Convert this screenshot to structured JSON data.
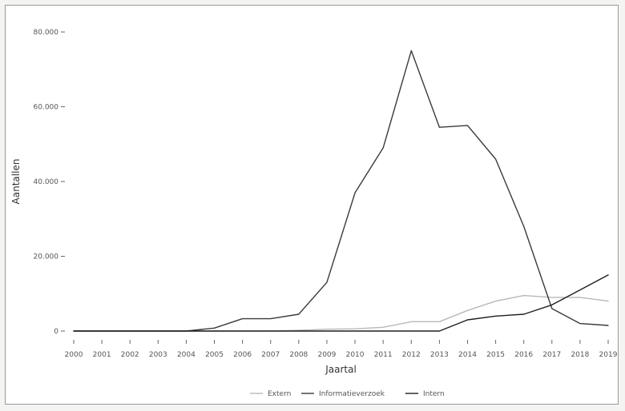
{
  "chart_data": {
    "type": "line",
    "title": "",
    "xlabel": "Jaartal",
    "ylabel": "Aantallen",
    "x": [
      2000,
      2001,
      2002,
      2003,
      2004,
      2005,
      2006,
      2007,
      2008,
      2009,
      2010,
      2011,
      2012,
      2013,
      2014,
      2015,
      2016,
      2017,
      2018,
      2019
    ],
    "x_tick_labels": [
      "2000",
      "2001",
      "2002",
      "2003",
      "2004",
      "2005",
      "2006",
      "2007",
      "2008",
      "2009",
      "2010",
      "2011",
      "2012",
      "2013",
      "2014",
      "2015",
      "2016",
      "2017",
      "2018",
      "2019"
    ],
    "ylim": [
      0,
      80000
    ],
    "y_ticks": [
      0,
      20000,
      40000,
      60000,
      80000
    ],
    "y_tick_labels": [
      "0",
      "20.000",
      "40.000",
      "60.000",
      "80.000"
    ],
    "grid": false,
    "legend_position": "bottom",
    "series": [
      {
        "name": "Extern",
        "color": "#b8b8b8",
        "values": [
          0,
          0,
          0,
          0,
          0,
          0,
          0,
          0,
          200,
          500,
          600,
          1000,
          2500,
          2500,
          5500,
          8000,
          9500,
          9000,
          9000,
          8000
        ]
      },
      {
        "name": "Informatieverzoek",
        "color": "#3a3a3a",
        "values": [
          0,
          0,
          0,
          0,
          0,
          800,
          3300,
          3300,
          4500,
          13000,
          37000,
          49000,
          75000,
          54500,
          55000,
          46000,
          28000,
          6000,
          2000,
          1500
        ]
      },
      {
        "name": "Intern",
        "color": "#1e1e1e",
        "values": [
          0,
          0,
          0,
          0,
          0,
          0,
          0,
          0,
          0,
          0,
          0,
          0,
          0,
          0,
          3000,
          4000,
          4500,
          7000,
          11000,
          15000
        ]
      }
    ]
  }
}
